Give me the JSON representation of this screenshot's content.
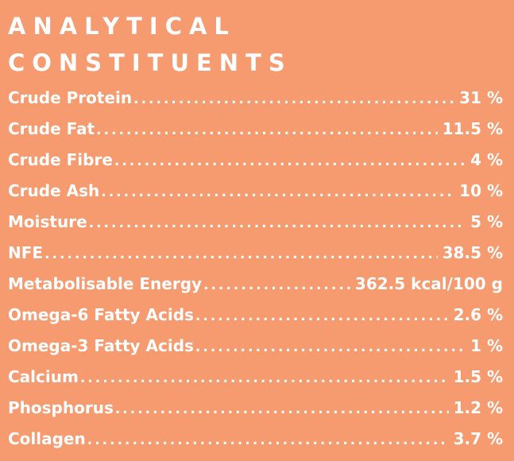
{
  "heading": {
    "line1": "ANALYTICAL",
    "line2": "CONSTITUENTS"
  },
  "rows": [
    {
      "label": "Crude Protein",
      "value": "31 %"
    },
    {
      "label": "Crude Fat",
      "value": "11.5 %"
    },
    {
      "label": "Crude Fibre",
      "value": "4 %"
    },
    {
      "label": "Crude Ash",
      "value": "10 %"
    },
    {
      "label": "Moisture",
      "value": "5 %"
    },
    {
      "label": "NFE",
      "value": "38.5 %"
    },
    {
      "label": "Metabolisable Energy",
      "value": "362.5 kcal/100 g"
    },
    {
      "label": "Omega-6 Fatty Acids",
      "value": "2.6 %"
    },
    {
      "label": "Omega-3 Fatty Acids",
      "value": "1 %"
    },
    {
      "label": "Calcium",
      "value": "1.5 %"
    },
    {
      "label": "Phosphorus",
      "value": "1.2 %"
    },
    {
      "label": "Collagen",
      "value": "3.7 %"
    }
  ],
  "colors": {
    "background": "#F69A6F",
    "text": "#FFFFFF"
  }
}
